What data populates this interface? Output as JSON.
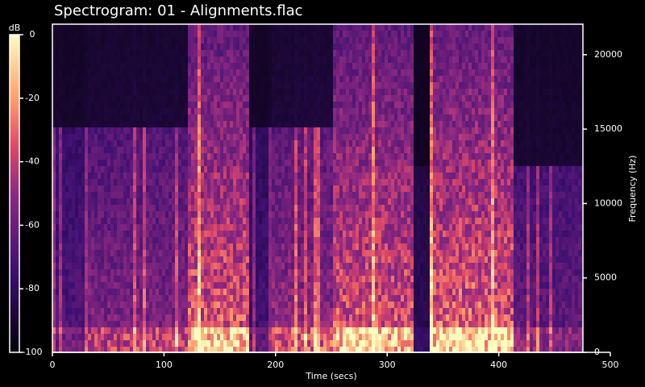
{
  "chart_data": {
    "type": "spectrogram",
    "title": "Spectrogram: 01 - Alignments.flac",
    "x_label": "Time (secs)",
    "y_label": "Frequency (Hz)",
    "xlim": [
      0,
      500
    ],
    "xticks": [
      0,
      100,
      200,
      300,
      400,
      500
    ],
    "ylim": [
      0,
      22050
    ],
    "yticks": [
      0,
      5000,
      10000,
      15000,
      20000
    ],
    "colorbar": {
      "label": "dB",
      "clim": [
        -100,
        0
      ],
      "ticks": [
        0,
        -20,
        -40,
        -60,
        -80,
        -100
      ]
    }
  }
}
